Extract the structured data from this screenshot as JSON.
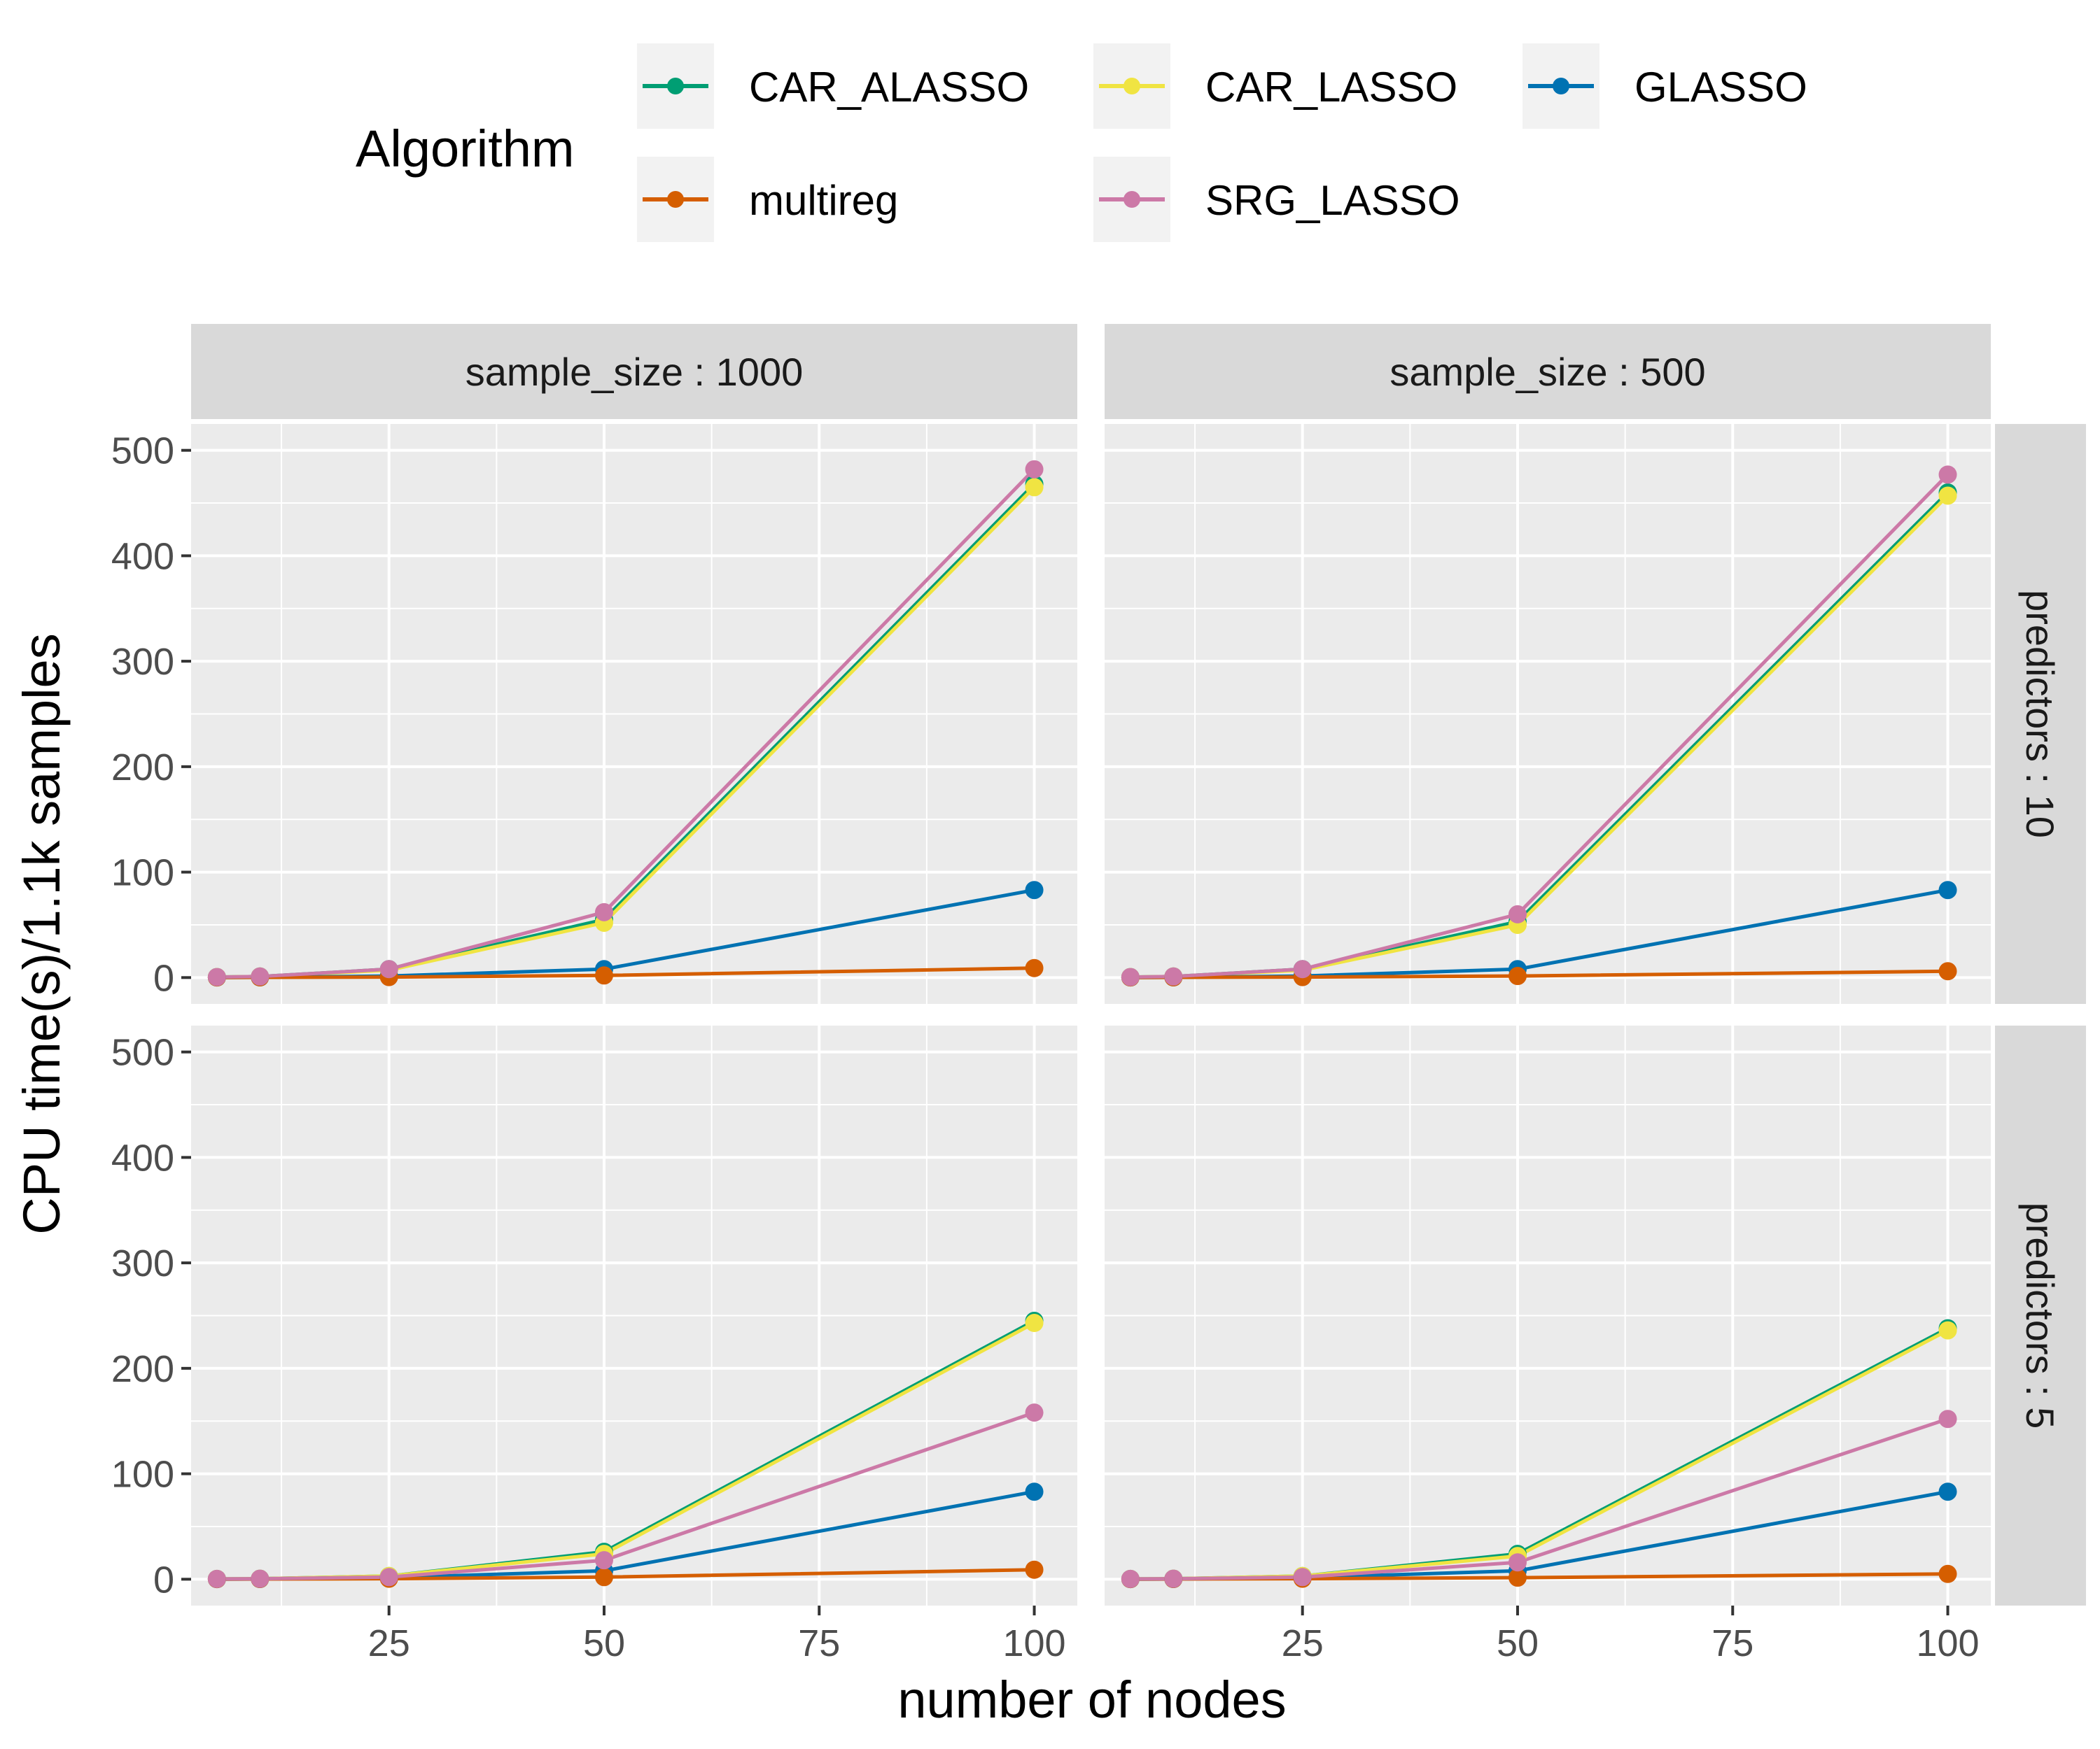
{
  "chart_data": {
    "type": "line",
    "xlabel": "number of nodes",
    "ylabel": "CPU time(s)/1.1k samples",
    "xlim": [
      2,
      105
    ],
    "ylim": [
      -25,
      525
    ],
    "x_ticks": [
      25,
      50,
      75,
      100
    ],
    "x_tick_labels": [
      "25",
      "50",
      "75",
      "100"
    ],
    "x_minor_ticks": [
      12.5,
      37.5,
      62.5,
      87.5
    ],
    "y_ticks": [
      0,
      100,
      200,
      300,
      400,
      500
    ],
    "y_tick_labels": [
      "0",
      "100",
      "200",
      "300",
      "400",
      "500"
    ],
    "y_minor_ticks": [
      50,
      150,
      250,
      350,
      450
    ],
    "grid": true,
    "legend": {
      "title": "Algorithm",
      "placement": "top",
      "entries": [
        {
          "name": "CAR_ALASSO",
          "color": "#009E73"
        },
        {
          "name": "CAR_LASSO",
          "color": "#F0E442"
        },
        {
          "name": "GLASSO",
          "color": "#0072B2"
        },
        {
          "name": "multireg",
          "color": "#D55E00"
        },
        {
          "name": "SRG_LASSO",
          "color": "#CC79A7"
        }
      ]
    },
    "col_strips": [
      "sample_size : 1000",
      "sample_size : 500"
    ],
    "row_strips": [
      "predictors : 10",
      "predictors : 5"
    ],
    "x": [
      5,
      10,
      25,
      50,
      100
    ],
    "panels": [
      {
        "row": 0,
        "col": 0,
        "series": [
          {
            "name": "CAR_ALASSO",
            "values": [
              0.5,
              1,
              8,
              55,
              468
            ]
          },
          {
            "name": "CAR_LASSO",
            "values": [
              0.5,
              1,
              7,
              52,
              465
            ]
          },
          {
            "name": "GLASSO",
            "values": [
              0.1,
              0.2,
              1.5,
              8,
              83
            ]
          },
          {
            "name": "multireg",
            "values": [
              0.1,
              0.2,
              0.5,
              2,
              9
            ]
          },
          {
            "name": "SRG_LASSO",
            "values": [
              0.5,
              1,
              8,
              62,
              482
            ]
          }
        ]
      },
      {
        "row": 0,
        "col": 1,
        "series": [
          {
            "name": "CAR_ALASSO",
            "values": [
              0.5,
              1,
              8,
              53,
              460
            ]
          },
          {
            "name": "CAR_LASSO",
            "values": [
              0.5,
              1,
              7,
              50,
              457
            ]
          },
          {
            "name": "GLASSO",
            "values": [
              0.1,
              0.2,
              1.5,
              8,
              83
            ]
          },
          {
            "name": "multireg",
            "values": [
              0.1,
              0.2,
              0.5,
              1.5,
              6
            ]
          },
          {
            "name": "SRG_LASSO",
            "values": [
              0.5,
              1,
              8,
              60,
              477
            ]
          }
        ]
      },
      {
        "row": 1,
        "col": 0,
        "series": [
          {
            "name": "CAR_ALASSO",
            "values": [
              0.3,
              0.5,
              3,
              26,
              245
            ]
          },
          {
            "name": "CAR_LASSO",
            "values": [
              0.3,
              0.5,
              3,
              24,
              243
            ]
          },
          {
            "name": "GLASSO",
            "values": [
              0.1,
              0.2,
              1.5,
              8,
              83
            ]
          },
          {
            "name": "multireg",
            "values": [
              0.1,
              0.2,
              0.5,
              2,
              9
            ]
          },
          {
            "name": "SRG_LASSO",
            "values": [
              0.3,
              0.5,
              2,
              18,
              158
            ]
          }
        ]
      },
      {
        "row": 1,
        "col": 1,
        "series": [
          {
            "name": "CAR_ALASSO",
            "values": [
              0.3,
              0.5,
              3,
              24,
              238
            ]
          },
          {
            "name": "CAR_LASSO",
            "values": [
              0.3,
              0.5,
              3,
              22,
              236
            ]
          },
          {
            "name": "GLASSO",
            "values": [
              0.1,
              0.2,
              1.5,
              8,
              83
            ]
          },
          {
            "name": "multireg",
            "values": [
              0.1,
              0.2,
              0.5,
              1.5,
              5
            ]
          },
          {
            "name": "SRG_LASSO",
            "values": [
              0.3,
              0.5,
              2,
              16,
              152
            ]
          }
        ]
      }
    ]
  }
}
